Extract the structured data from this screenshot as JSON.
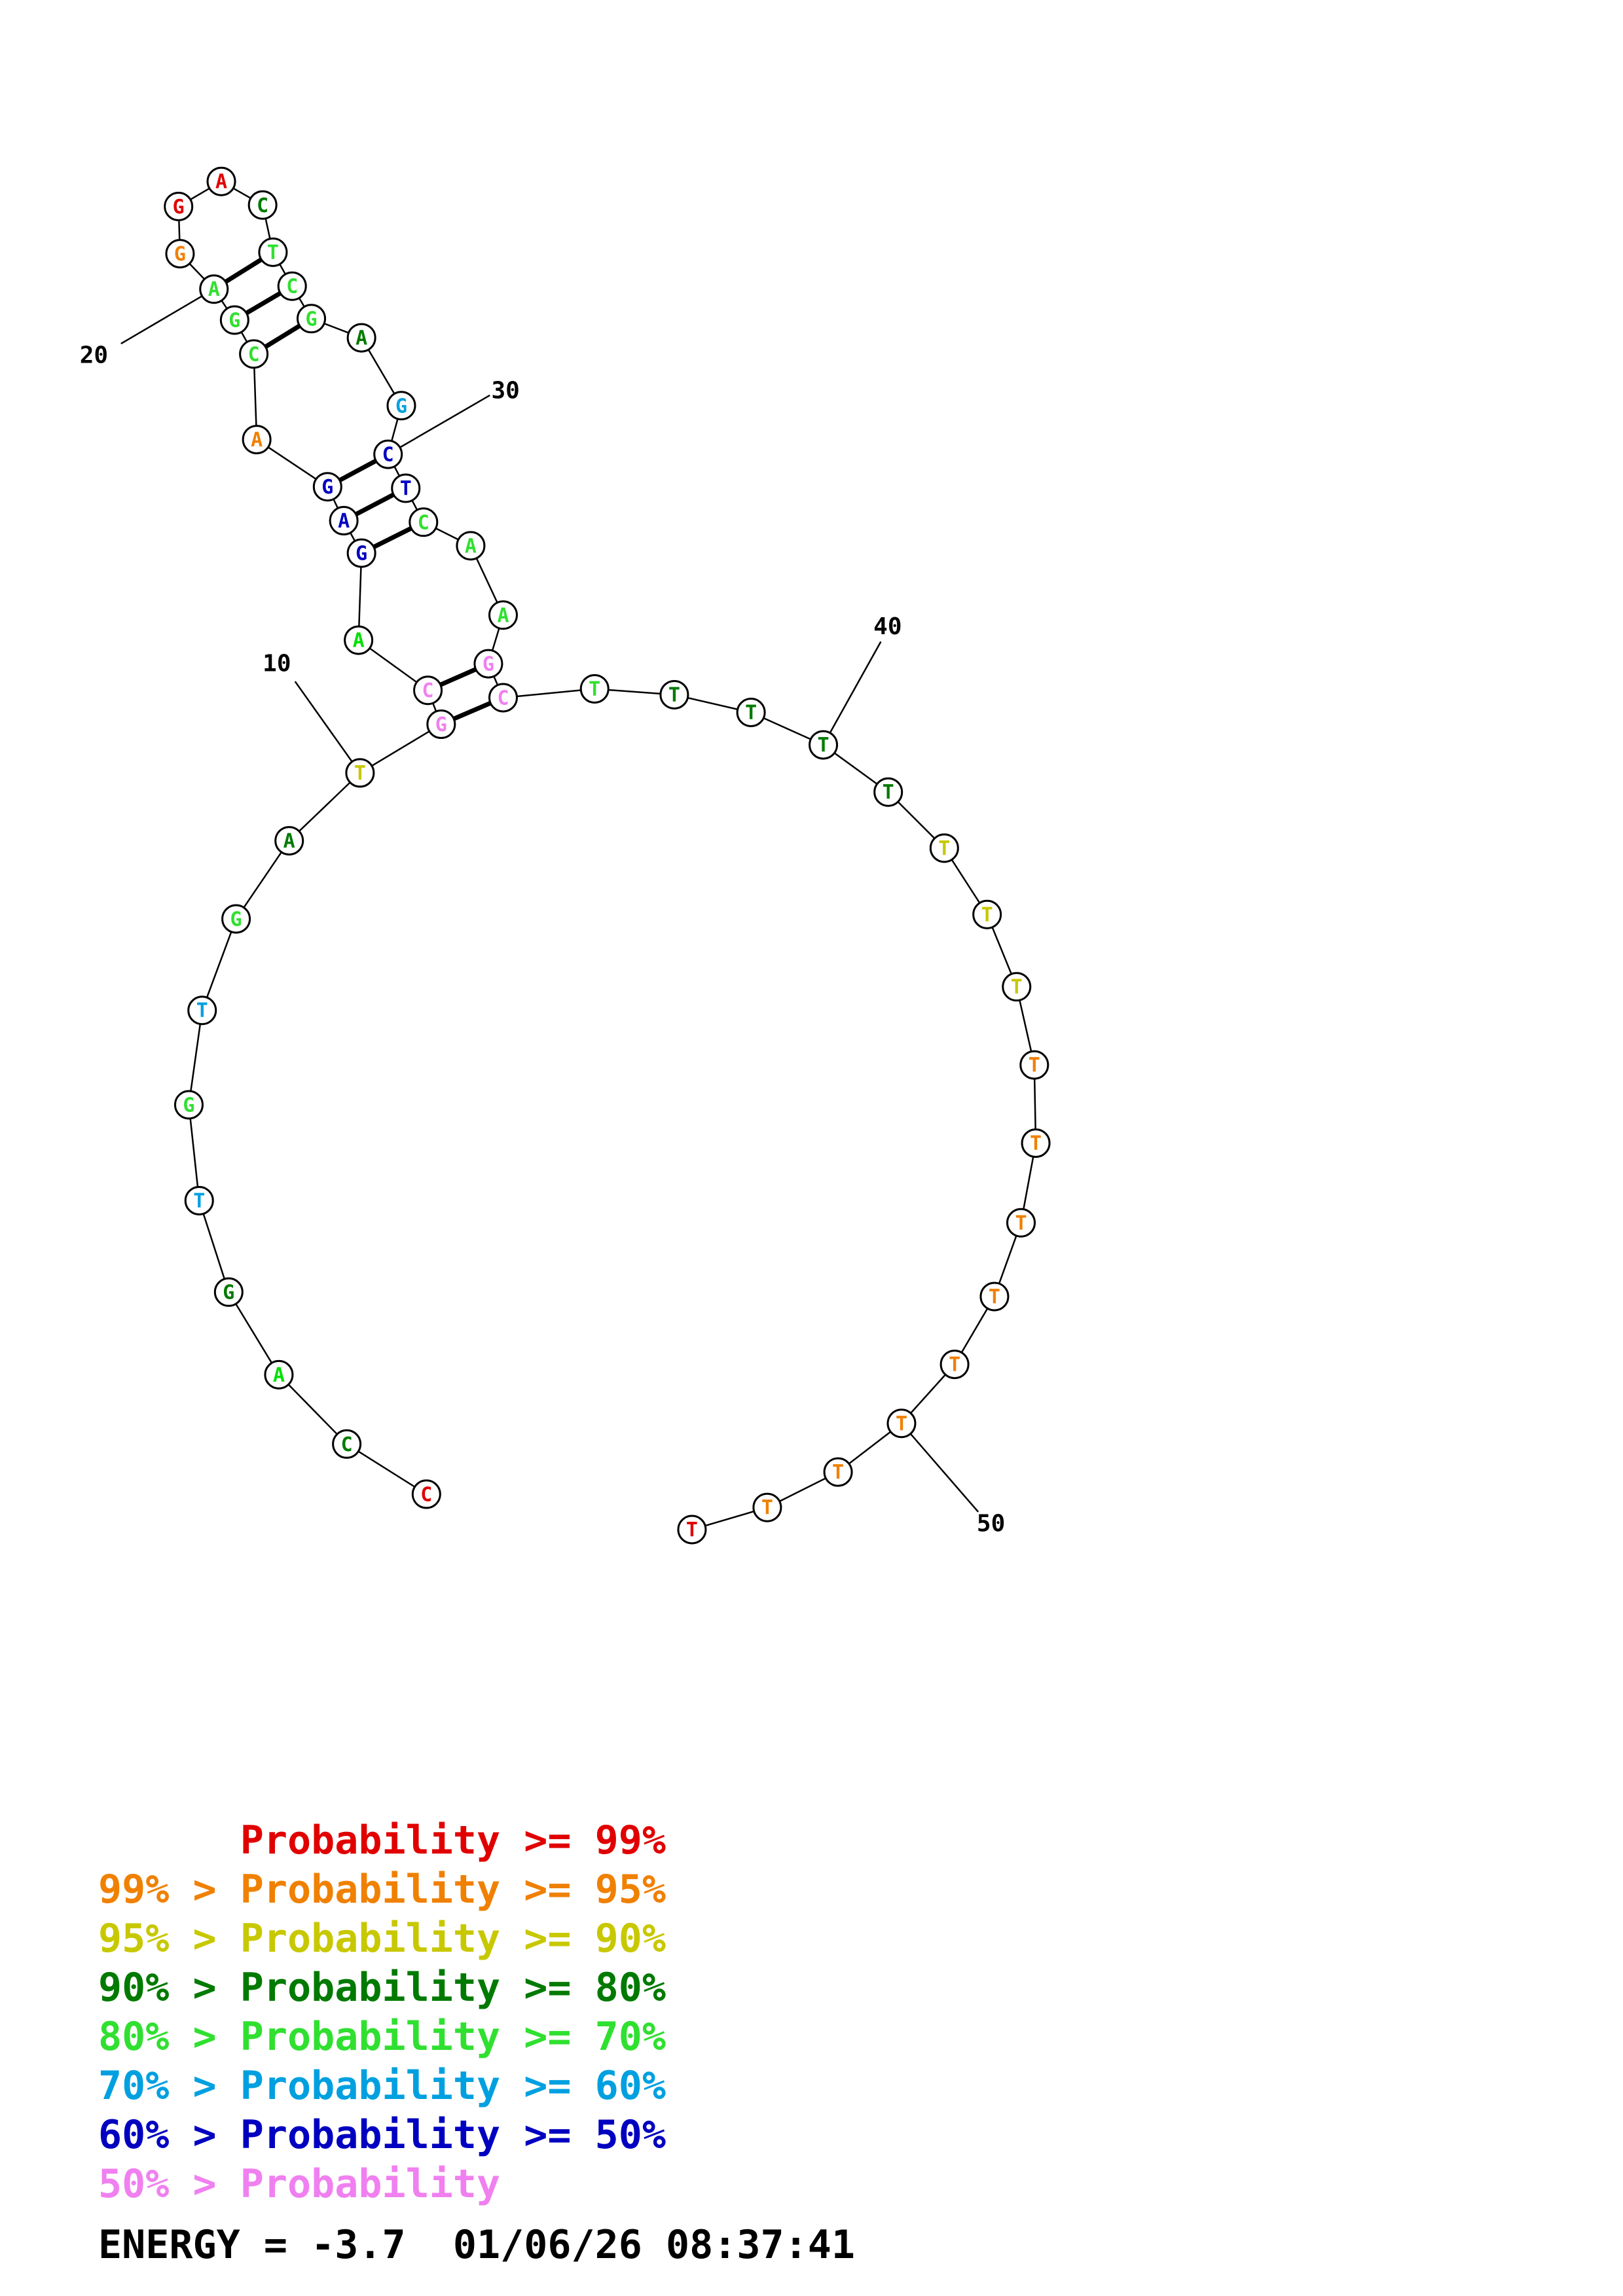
{
  "structure": {
    "nucleotides": [
      {
        "base": "C",
        "color": "#e00000"
      },
      {
        "base": "C",
        "color": "#007a00"
      },
      {
        "base": "A",
        "color": "#00e000"
      },
      {
        "base": "G",
        "color": "#007a00"
      },
      {
        "base": "T",
        "color": "#00a0e0"
      },
      {
        "base": "G",
        "color": "#30e030"
      },
      {
        "base": "T",
        "color": "#00a0e0"
      },
      {
        "base": "G",
        "color": "#30e030"
      },
      {
        "base": "A",
        "color": "#007a00"
      },
      {
        "base": "T",
        "color": "#c8c800"
      },
      {
        "base": "G",
        "color": "#f080f0"
      },
      {
        "base": "C",
        "color": "#f080f0"
      },
      {
        "base": "A",
        "color": "#00e000"
      },
      {
        "base": "G",
        "color": "#0000c0"
      },
      {
        "base": "A",
        "color": "#0000c0"
      },
      {
        "base": "G",
        "color": "#0000c0"
      },
      {
        "base": "A",
        "color": "#f08000"
      },
      {
        "base": "C",
        "color": "#30e030"
      },
      {
        "base": "G",
        "color": "#30e030"
      },
      {
        "base": "A",
        "color": "#30e030"
      },
      {
        "base": "G",
        "color": "#f08000"
      },
      {
        "base": "G",
        "color": "#e00000"
      },
      {
        "base": "A",
        "color": "#e00000"
      },
      {
        "base": "C",
        "color": "#007a00"
      },
      {
        "base": "T",
        "color": "#30e030"
      },
      {
        "base": "C",
        "color": "#30e030"
      },
      {
        "base": "G",
        "color": "#30e030"
      },
      {
        "base": "A",
        "color": "#007a00"
      },
      {
        "base": "G",
        "color": "#00a0e0"
      },
      {
        "base": "C",
        "color": "#0000c0"
      },
      {
        "base": "T",
        "color": "#0000c0"
      },
      {
        "base": "C",
        "color": "#30e030"
      },
      {
        "base": "A",
        "color": "#30e030"
      },
      {
        "base": "A",
        "color": "#30e030"
      },
      {
        "base": "G",
        "color": "#f080f0"
      },
      {
        "base": "C",
        "color": "#f080f0"
      },
      {
        "base": "T",
        "color": "#30e030"
      },
      {
        "base": "T",
        "color": "#007a00"
      },
      {
        "base": "T",
        "color": "#007a00"
      },
      {
        "base": "T",
        "color": "#007a00"
      },
      {
        "base": "T",
        "color": "#007a00"
      },
      {
        "base": "T",
        "color": "#c8c800"
      },
      {
        "base": "T",
        "color": "#c8c800"
      },
      {
        "base": "T",
        "color": "#c8c800"
      },
      {
        "base": "T",
        "color": "#f08000"
      },
      {
        "base": "T",
        "color": "#f08000"
      },
      {
        "base": "T",
        "color": "#f08000"
      },
      {
        "base": "T",
        "color": "#f08000"
      },
      {
        "base": "T",
        "color": "#f08000"
      },
      {
        "base": "T",
        "color": "#f08000"
      },
      {
        "base": "T",
        "color": "#f08000"
      },
      {
        "base": "T",
        "color": "#f08000"
      },
      {
        "base": "T",
        "color": "#e00000"
      }
    ],
    "pairs": [
      [
        11,
        36
      ],
      [
        12,
        35
      ],
      [
        14,
        32
      ],
      [
        15,
        31
      ],
      [
        16,
        30
      ],
      [
        18,
        27
      ],
      [
        19,
        26
      ],
      [
        20,
        25
      ]
    ],
    "position_labels": [
      {
        "index": 10,
        "text": "10"
      },
      {
        "index": 20,
        "text": "20"
      },
      {
        "index": 30,
        "text": "30"
      },
      {
        "index": 40,
        "text": "40"
      },
      {
        "index": 50,
        "text": "50"
      }
    ]
  },
  "legend": [
    {
      "prefix": "",
      "label": "Probability >= 99%",
      "color": "#e00000"
    },
    {
      "prefix": "99% > ",
      "label": "Probability >= 95%",
      "color": "#f08000"
    },
    {
      "prefix": "95% > ",
      "label": "Probability >= 90%",
      "color": "#c8c800"
    },
    {
      "prefix": "90% > ",
      "label": "Probability >= 80%",
      "color": "#007a00"
    },
    {
      "prefix": "80% > ",
      "label": "Probability >= 70%",
      "color": "#30e030"
    },
    {
      "prefix": "70% > ",
      "label": "Probability >= 60%",
      "color": "#00a0e0"
    },
    {
      "prefix": "60% > ",
      "label": "Probability >= 50%",
      "color": "#0000c0"
    },
    {
      "prefix": "50% > ",
      "label": "Probability",
      "color": "#f080f0"
    }
  ],
  "energy_line": "ENERGY = -3.7  01/06/26 08:37:41"
}
